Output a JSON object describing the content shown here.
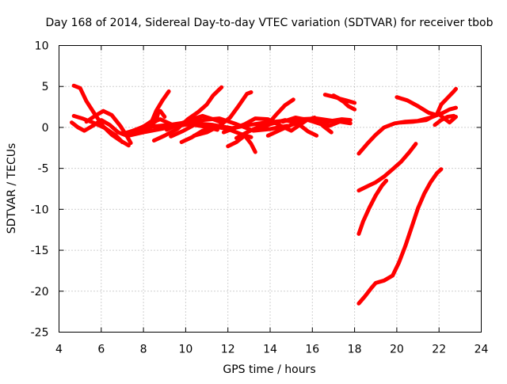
{
  "chart_data": {
    "type": "line",
    "title": "Day 168 of 2014, Sidereal Day-to-day VTEC variation (SDTVAR) for receiver tbob",
    "xlabel": "GPS time / hours",
    "ylabel": "SDTVAR / TECUs",
    "xlim": [
      4,
      24
    ],
    "ylim": [
      -25,
      10
    ],
    "xticks": [
      "4",
      "6",
      "8",
      "10",
      "12",
      "14",
      "16",
      "18",
      "20",
      "22",
      "24"
    ],
    "yticks": [
      "10",
      "5",
      "0",
      "-5",
      "-10",
      "-15",
      "-20",
      "-25"
    ],
    "grid": true,
    "legend": "none",
    "line_color": "#ff0000",
    "series": [
      {
        "values": [
          [
            4.6,
            0.6
          ],
          [
            4.9,
            0.0
          ],
          [
            5.2,
            -0.4
          ],
          [
            5.6,
            0.2
          ],
          [
            6.0,
            0.9
          ],
          [
            6.4,
            0.3
          ],
          [
            6.8,
            -0.6
          ],
          [
            7.2,
            -1.0
          ],
          [
            7.7,
            -0.3
          ],
          [
            8.2,
            0.4
          ],
          [
            8.8,
            1.0
          ],
          [
            9.3,
            0.4
          ]
        ]
      },
      {
        "values": [
          [
            4.7,
            5.1
          ],
          [
            5.0,
            4.8
          ],
          [
            5.3,
            3.2
          ],
          [
            5.7,
            1.6
          ],
          [
            6.1,
            0.1
          ],
          [
            6.5,
            -0.9
          ],
          [
            6.9,
            -1.6
          ],
          [
            7.3,
            -2.2
          ]
        ]
      },
      {
        "values": [
          [
            4.7,
            1.4
          ],
          [
            5.1,
            1.1
          ],
          [
            5.6,
            0.6
          ],
          [
            6.2,
            -0.1
          ],
          [
            6.7,
            -1.0
          ],
          [
            7.0,
            -1.8
          ]
        ]
      },
      {
        "values": [
          [
            5.3,
            0.7
          ],
          [
            5.7,
            1.4
          ],
          [
            6.1,
            2.0
          ],
          [
            6.5,
            1.5
          ],
          [
            6.9,
            0.2
          ],
          [
            7.2,
            -1.0
          ],
          [
            7.4,
            -1.9
          ]
        ]
      },
      {
        "values": [
          [
            7.0,
            -0.8
          ],
          [
            7.5,
            -0.4
          ],
          [
            8.0,
            0.1
          ],
          [
            8.4,
            0.8
          ],
          [
            8.6,
            2.0
          ],
          [
            8.9,
            3.3
          ],
          [
            9.2,
            4.4
          ]
        ]
      },
      {
        "values": [
          [
            7.3,
            -1.0
          ],
          [
            8.0,
            -0.6
          ],
          [
            8.8,
            -0.2
          ],
          [
            9.6,
            0.2
          ],
          [
            10.5,
            0.5
          ],
          [
            11.3,
            0.3
          ],
          [
            12.2,
            -0.1
          ],
          [
            13.0,
            0.3
          ],
          [
            13.8,
            0.6
          ],
          [
            14.6,
            0.8
          ],
          [
            15.4,
            1.0
          ],
          [
            16.2,
            1.1
          ],
          [
            17.0,
            0.8
          ]
        ]
      },
      {
        "values": [
          [
            7.7,
            -0.5
          ],
          [
            8.4,
            0.1
          ],
          [
            9.2,
            0.3
          ],
          [
            10.0,
            0.6
          ],
          [
            10.8,
            0.9
          ],
          [
            11.6,
            1.1
          ],
          [
            12.4,
            0.4
          ],
          [
            13.2,
            -0.4
          ],
          [
            14.0,
            -0.2
          ],
          [
            14.8,
            0.2
          ]
        ]
      },
      {
        "values": [
          [
            8.3,
            0.2
          ],
          [
            8.6,
            0.8
          ],
          [
            8.7,
            1.8
          ],
          [
            8.8,
            2.0
          ],
          [
            9.0,
            1.3
          ]
        ]
      },
      {
        "values": [
          [
            8.5,
            -1.6
          ],
          [
            9.0,
            -1.0
          ],
          [
            9.6,
            -0.2
          ],
          [
            10.1,
            1.0
          ],
          [
            10.6,
            1.9
          ],
          [
            11.0,
            2.8
          ],
          [
            11.3,
            3.9
          ],
          [
            11.7,
            4.9
          ]
        ]
      },
      {
        "values": [
          [
            9.1,
            -0.3
          ],
          [
            9.6,
            0.3
          ],
          [
            10.2,
            0.9
          ],
          [
            10.8,
            1.4
          ],
          [
            11.3,
            1.0
          ],
          [
            11.7,
            0.6
          ]
        ]
      },
      {
        "values": [
          [
            9.3,
            -1.1
          ],
          [
            9.9,
            -0.4
          ],
          [
            10.4,
            0.3
          ],
          [
            10.9,
            0.1
          ],
          [
            11.5,
            -0.3
          ]
        ]
      },
      {
        "values": [
          [
            9.8,
            -1.8
          ],
          [
            10.3,
            -1.2
          ],
          [
            10.8,
            -0.4
          ],
          [
            11.4,
            0.1
          ],
          [
            12.0,
            -0.2
          ],
          [
            12.6,
            -0.8
          ],
          [
            13.1,
            -1.2
          ]
        ]
      },
      {
        "values": [
          [
            10.4,
            -1.0
          ],
          [
            11.0,
            -0.6
          ],
          [
            11.6,
            0.2
          ],
          [
            12.1,
            1.2
          ],
          [
            12.5,
            2.6
          ],
          [
            12.9,
            4.1
          ],
          [
            13.1,
            4.3
          ]
        ]
      },
      {
        "values": [
          [
            11.8,
            -0.6
          ],
          [
            12.3,
            -0.1
          ],
          [
            12.8,
            0.4
          ],
          [
            13.3,
            1.1
          ],
          [
            13.9,
            1.0
          ],
          [
            14.5,
            0.2
          ],
          [
            15.0,
            -0.4
          ],
          [
            15.4,
            0.3
          ],
          [
            15.8,
            1.0
          ],
          [
            16.3,
            0.7
          ],
          [
            16.8,
            0.2
          ],
          [
            17.3,
            0.7
          ],
          [
            17.8,
            0.5
          ]
        ]
      },
      {
        "values": [
          [
            12.0,
            -2.3
          ],
          [
            12.4,
            -1.8
          ],
          [
            12.8,
            -1.0
          ],
          [
            13.1,
            -2.0
          ],
          [
            13.3,
            -3.0
          ]
        ]
      },
      {
        "values": [
          [
            12.4,
            -1.3
          ],
          [
            12.9,
            -0.6
          ],
          [
            13.4,
            0.0
          ],
          [
            13.9,
            0.4
          ],
          [
            14.3,
            1.6
          ],
          [
            14.7,
            2.7
          ],
          [
            15.1,
            3.4
          ]
        ]
      },
      {
        "values": [
          [
            13.4,
            -0.3
          ],
          [
            14.0,
            0.4
          ],
          [
            14.7,
            0.9
          ],
          [
            15.3,
            0.5
          ],
          [
            15.8,
            -0.5
          ],
          [
            16.2,
            -1.0
          ]
        ]
      },
      {
        "values": [
          [
            13.9,
            -1.0
          ],
          [
            14.4,
            -0.4
          ],
          [
            15.0,
            0.3
          ],
          [
            15.6,
            0.8
          ],
          [
            16.1,
            1.2
          ],
          [
            16.5,
            0.2
          ],
          [
            16.9,
            -0.6
          ]
        ]
      },
      {
        "values": [
          [
            14.6,
            0.7
          ],
          [
            15.2,
            1.2
          ],
          [
            15.8,
            0.9
          ],
          [
            16.4,
            0.4
          ],
          [
            16.9,
            0.8
          ],
          [
            17.4,
            1.0
          ],
          [
            17.8,
            0.9
          ]
        ]
      },
      {
        "values": [
          [
            16.6,
            4.0
          ],
          [
            16.9,
            3.8
          ],
          [
            17.2,
            3.6
          ],
          [
            17.5,
            3.1
          ],
          [
            17.7,
            2.6
          ],
          [
            18.0,
            2.2
          ]
        ]
      },
      {
        "values": [
          [
            17.0,
            3.9
          ],
          [
            17.3,
            3.5
          ],
          [
            17.6,
            3.3
          ],
          [
            18.0,
            3.0
          ]
        ]
      },
      {
        "values": [
          [
            18.2,
            -3.2
          ],
          [
            18.6,
            -2.0
          ],
          [
            19.0,
            -0.9
          ],
          [
            19.4,
            0.0
          ],
          [
            19.9,
            0.5
          ],
          [
            20.4,
            0.7
          ],
          [
            21.0,
            0.8
          ],
          [
            21.6,
            1.2
          ],
          [
            22.0,
            1.6
          ],
          [
            22.3,
            1.0
          ],
          [
            22.5,
            0.6
          ],
          [
            22.8,
            1.3
          ]
        ]
      },
      {
        "values": [
          [
            18.2,
            -7.7
          ],
          [
            18.6,
            -7.2
          ],
          [
            19.0,
            -6.7
          ],
          [
            19.4,
            -6.0
          ],
          [
            19.8,
            -5.1
          ],
          [
            20.2,
            -4.2
          ],
          [
            20.6,
            -3.0
          ],
          [
            20.9,
            -2.0
          ]
        ]
      },
      {
        "values": [
          [
            18.2,
            -13.0
          ],
          [
            18.4,
            -11.5
          ],
          [
            18.7,
            -9.8
          ],
          [
            19.0,
            -8.3
          ],
          [
            19.3,
            -7.1
          ],
          [
            19.5,
            -6.5
          ]
        ]
      },
      {
        "values": [
          [
            18.2,
            -21.5
          ],
          [
            18.5,
            -20.6
          ],
          [
            18.8,
            -19.6
          ],
          [
            19.0,
            -19.0
          ],
          [
            19.4,
            -18.7
          ],
          [
            19.8,
            -18.1
          ],
          [
            20.1,
            -16.5
          ],
          [
            20.4,
            -14.5
          ],
          [
            20.7,
            -12.2
          ],
          [
            21.0,
            -9.9
          ],
          [
            21.3,
            -8.1
          ],
          [
            21.6,
            -6.7
          ],
          [
            21.9,
            -5.6
          ],
          [
            22.1,
            -5.1
          ]
        ]
      },
      {
        "values": [
          [
            20.0,
            3.7
          ],
          [
            20.5,
            3.3
          ],
          [
            21.0,
            2.6
          ],
          [
            21.5,
            1.8
          ],
          [
            21.9,
            1.5
          ],
          [
            22.2,
            1.8
          ],
          [
            22.5,
            2.2
          ],
          [
            22.8,
            2.4
          ]
        ]
      },
      {
        "values": [
          [
            20.2,
            0.6
          ],
          [
            20.8,
            0.7
          ],
          [
            21.4,
            0.9
          ],
          [
            21.9,
            1.6
          ],
          [
            22.1,
            2.8
          ],
          [
            22.4,
            3.6
          ],
          [
            22.7,
            4.4
          ],
          [
            22.8,
            4.7
          ]
        ]
      },
      {
        "values": [
          [
            21.8,
            0.3
          ],
          [
            22.1,
            0.9
          ],
          [
            22.4,
            1.3
          ],
          [
            22.7,
            1.4
          ]
        ]
      }
    ]
  }
}
